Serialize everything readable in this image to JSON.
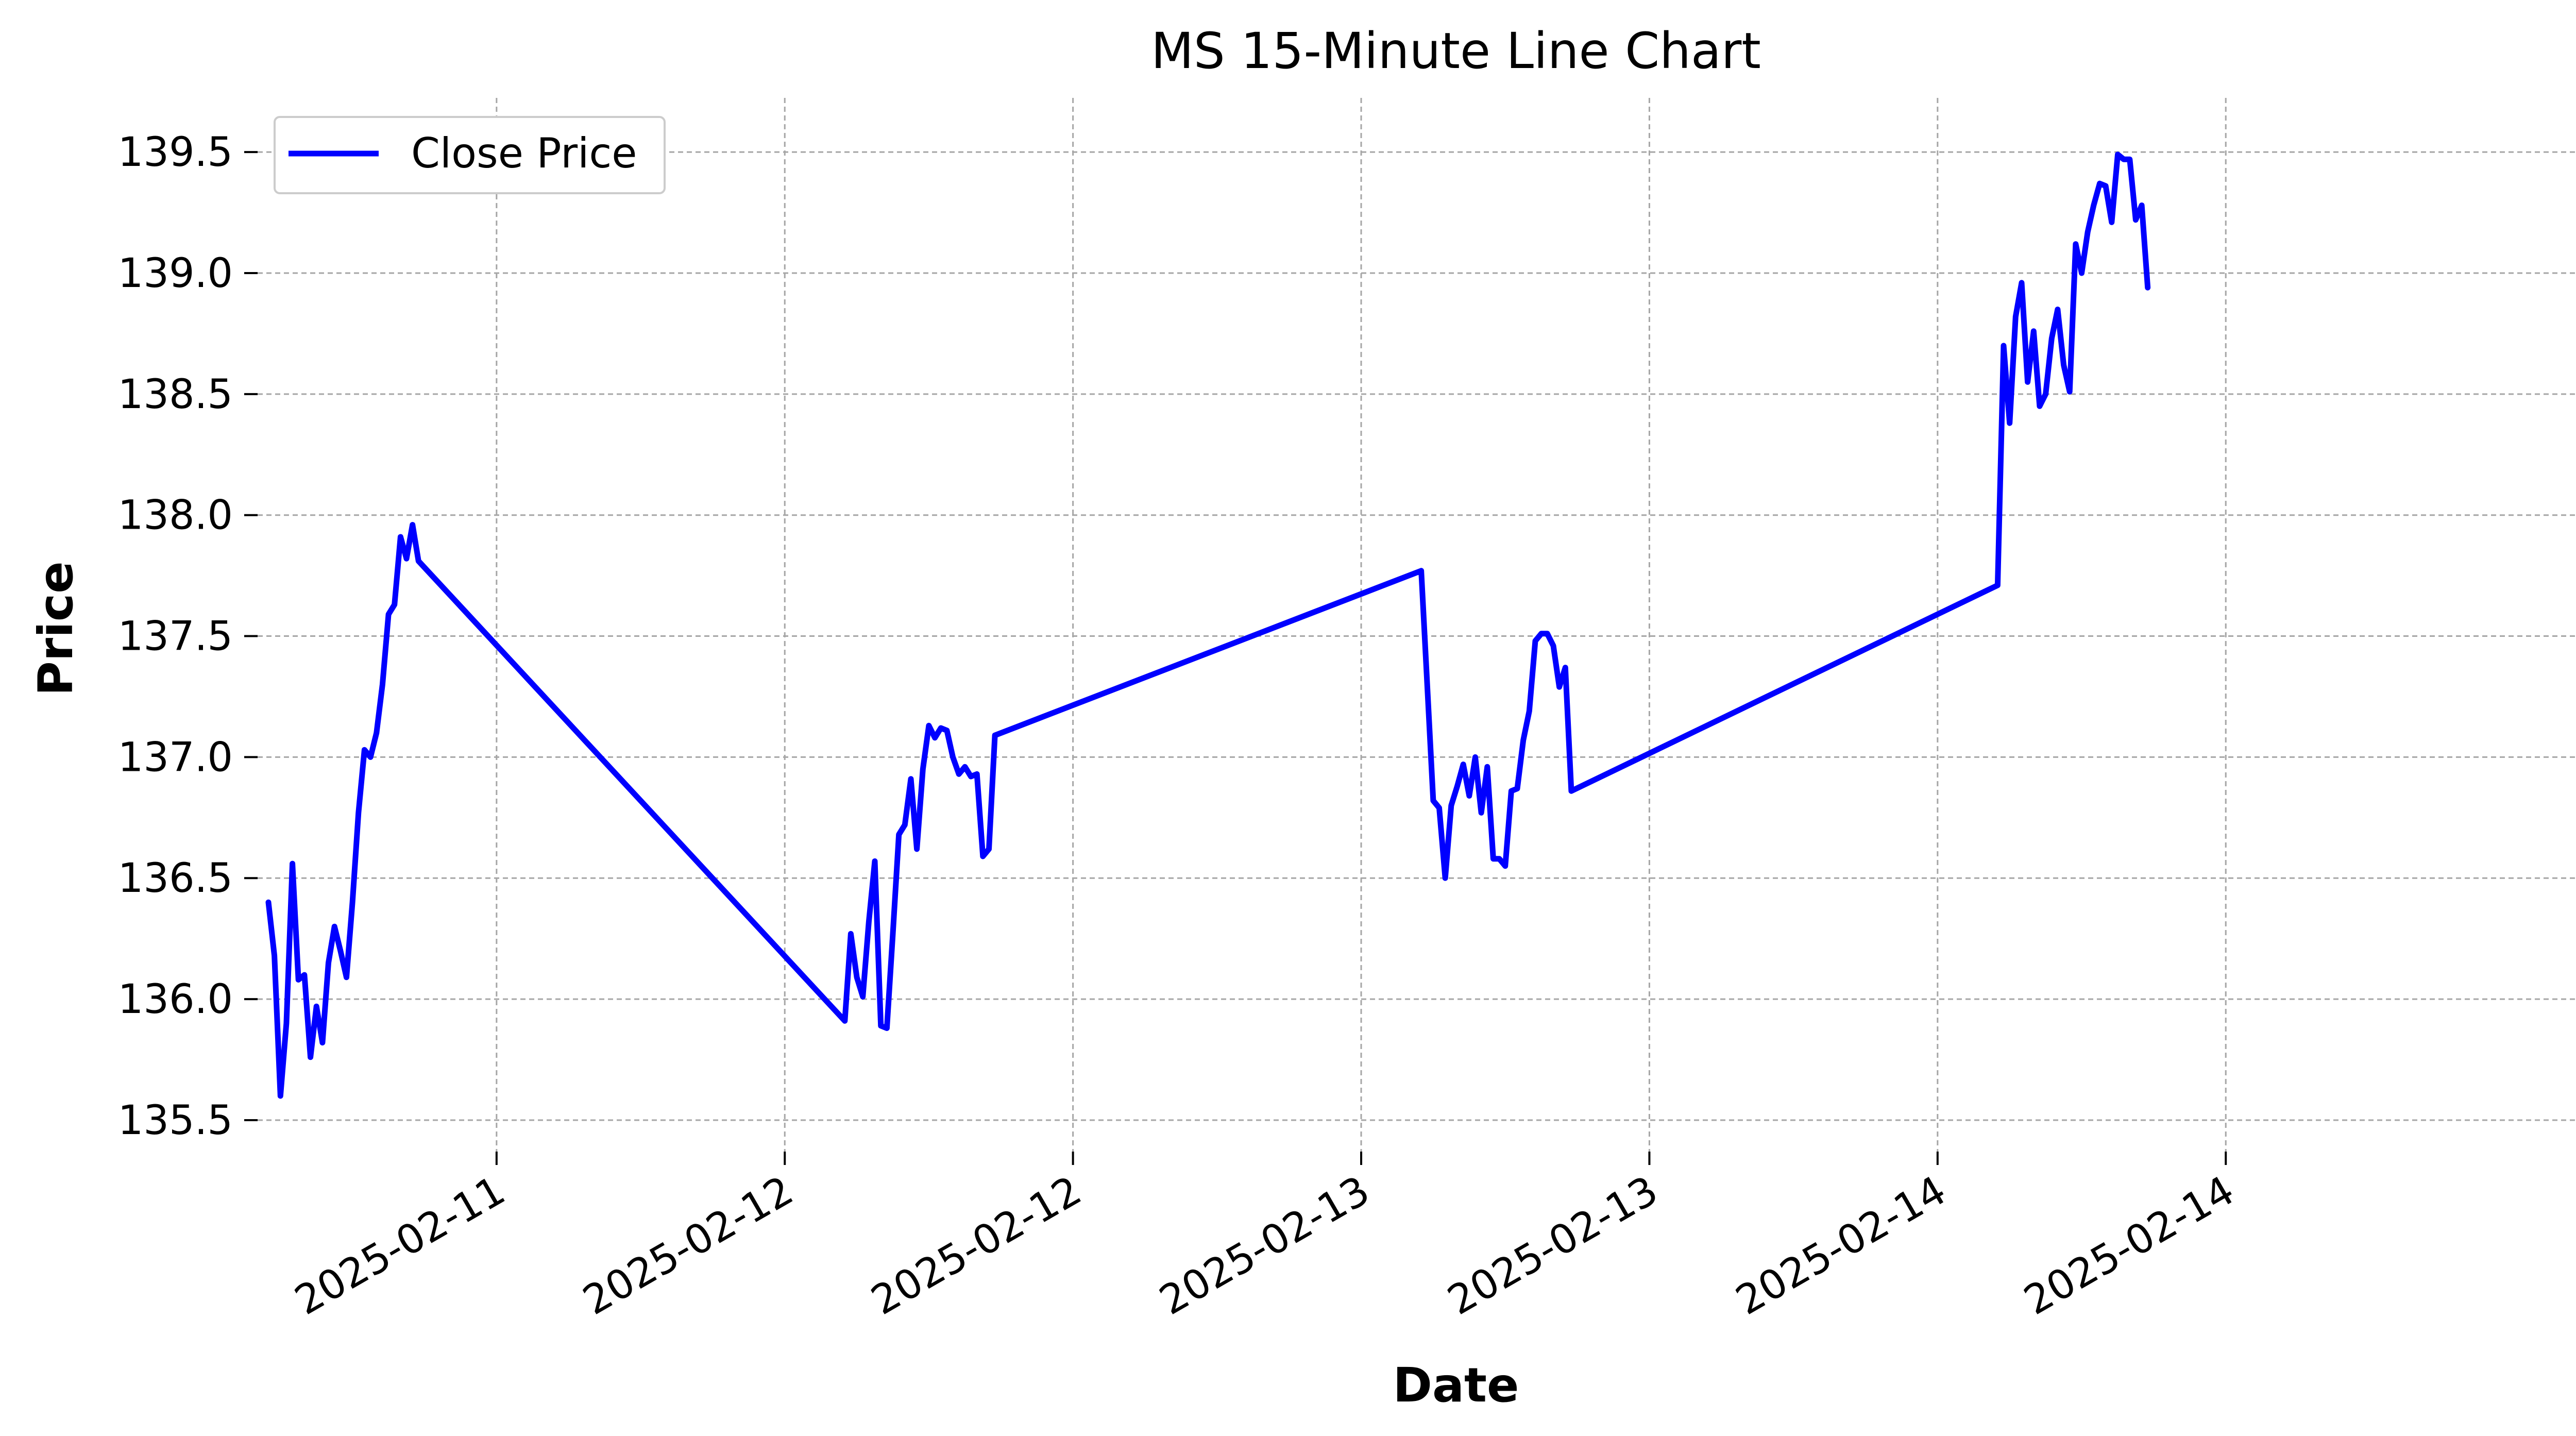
{
  "chart_data": {
    "type": "line",
    "title": "MS 15-Minute Line Chart",
    "xlabel": "Date",
    "ylabel": "Price",
    "ylim": [
      135.37,
      139.66
    ],
    "xlim": [
      "2025-02-10 14:03",
      "2025-02-14 17:48"
    ],
    "grid": true,
    "legend_position": "top-left",
    "colors": {
      "line": "#0000ff",
      "grid": "#a6a6a6"
    },
    "x_ticks": [
      {
        "x": "2025-02-11 00:00",
        "label": "2025-02-11"
      },
      {
        "x": "2025-02-11 12:00",
        "label": "2025-02-12"
      },
      {
        "x": "2025-02-12 00:00",
        "label": "2025-02-12"
      },
      {
        "x": "2025-02-12 12:00",
        "label": "2025-02-13"
      },
      {
        "x": "2025-02-13 00:00",
        "label": "2025-02-13"
      },
      {
        "x": "2025-02-13 12:00",
        "label": "2025-02-14"
      },
      {
        "x": "2025-02-14 00:00",
        "label": "2025-02-14"
      }
    ],
    "y_ticks": [
      135.5,
      136.0,
      136.5,
      137.0,
      137.5,
      138.0,
      138.5,
      139.0,
      139.5
    ],
    "series": [
      {
        "name": "Close Price",
        "points": [
          [
            "2025-02-10 14:30",
            136.4
          ],
          [
            "2025-02-10 14:45",
            136.18
          ],
          [
            "2025-02-10 15:00",
            135.6
          ],
          [
            "2025-02-10 15:15",
            135.9
          ],
          [
            "2025-02-10 15:30",
            136.56
          ],
          [
            "2025-02-10 15:45",
            136.08
          ],
          [
            "2025-02-10 16:00",
            136.1
          ],
          [
            "2025-02-10 16:15",
            135.76
          ],
          [
            "2025-02-10 16:30",
            135.97
          ],
          [
            "2025-02-10 16:45",
            135.82
          ],
          [
            "2025-02-10 17:00",
            136.15
          ],
          [
            "2025-02-10 17:15",
            136.3
          ],
          [
            "2025-02-10 17:30",
            136.2
          ],
          [
            "2025-02-10 17:45",
            136.09
          ],
          [
            "2025-02-10 18:00",
            136.4
          ],
          [
            "2025-02-10 18:15",
            136.77
          ],
          [
            "2025-02-10 18:30",
            137.03
          ],
          [
            "2025-02-10 18:45",
            137.0
          ],
          [
            "2025-02-10 19:00",
            137.1
          ],
          [
            "2025-02-10 19:15",
            137.3
          ],
          [
            "2025-02-10 19:30",
            137.59
          ],
          [
            "2025-02-10 19:45",
            137.63
          ],
          [
            "2025-02-10 20:00",
            137.91
          ],
          [
            "2025-02-10 20:15",
            137.82
          ],
          [
            "2025-02-10 20:30",
            137.96
          ],
          [
            "2025-02-10 20:45",
            137.81
          ],
          [
            "2025-02-11 14:30",
            135.91
          ],
          [
            "2025-02-11 14:45",
            136.27
          ],
          [
            "2025-02-11 15:00",
            136.09
          ],
          [
            "2025-02-11 15:15",
            136.01
          ],
          [
            "2025-02-11 15:30",
            136.32
          ],
          [
            "2025-02-11 15:45",
            136.57
          ],
          [
            "2025-02-11 16:00",
            135.89
          ],
          [
            "2025-02-11 16:15",
            135.88
          ],
          [
            "2025-02-11 16:30",
            136.27
          ],
          [
            "2025-02-11 16:45",
            136.68
          ],
          [
            "2025-02-11 17:00",
            136.72
          ],
          [
            "2025-02-11 17:15",
            136.91
          ],
          [
            "2025-02-11 17:30",
            136.62
          ],
          [
            "2025-02-11 17:45",
            136.95
          ],
          [
            "2025-02-11 18:00",
            137.13
          ],
          [
            "2025-02-11 18:15",
            137.08
          ],
          [
            "2025-02-11 18:30",
            137.12
          ],
          [
            "2025-02-11 18:45",
            137.11
          ],
          [
            "2025-02-11 19:00",
            137.0
          ],
          [
            "2025-02-11 19:15",
            136.93
          ],
          [
            "2025-02-11 19:30",
            136.96
          ],
          [
            "2025-02-11 19:45",
            136.92
          ],
          [
            "2025-02-11 20:00",
            136.93
          ],
          [
            "2025-02-11 20:15",
            136.59
          ],
          [
            "2025-02-11 20:30",
            136.62
          ],
          [
            "2025-02-11 20:45",
            137.09
          ],
          [
            "2025-02-12 14:30",
            137.77
          ],
          [
            "2025-02-12 14:45",
            137.3
          ],
          [
            "2025-02-12 15:00",
            136.82
          ],
          [
            "2025-02-12 15:15",
            136.79
          ],
          [
            "2025-02-12 15:30",
            136.5
          ],
          [
            "2025-02-12 15:45",
            136.8
          ],
          [
            "2025-02-12 16:00",
            136.88
          ],
          [
            "2025-02-12 16:15",
            136.97
          ],
          [
            "2025-02-12 16:30",
            136.84
          ],
          [
            "2025-02-12 16:45",
            137.0
          ],
          [
            "2025-02-12 17:00",
            136.77
          ],
          [
            "2025-02-12 17:15",
            136.96
          ],
          [
            "2025-02-12 17:30",
            136.58
          ],
          [
            "2025-02-12 17:45",
            136.58
          ],
          [
            "2025-02-12 18:00",
            136.55
          ],
          [
            "2025-02-12 18:15",
            136.86
          ],
          [
            "2025-02-12 18:30",
            136.87
          ],
          [
            "2025-02-12 18:45",
            137.07
          ],
          [
            "2025-02-12 19:00",
            137.19
          ],
          [
            "2025-02-12 19:15",
            137.48
          ],
          [
            "2025-02-12 19:30",
            137.51
          ],
          [
            "2025-02-12 19:45",
            137.51
          ],
          [
            "2025-02-12 20:00",
            137.46
          ],
          [
            "2025-02-12 20:15",
            137.29
          ],
          [
            "2025-02-12 20:30",
            137.37
          ],
          [
            "2025-02-12 20:45",
            136.86
          ],
          [
            "2025-02-13 14:30",
            137.71
          ],
          [
            "2025-02-13 14:45",
            138.7
          ],
          [
            "2025-02-13 15:00",
            138.38
          ],
          [
            "2025-02-13 15:15",
            138.82
          ],
          [
            "2025-02-13 15:30",
            138.96
          ],
          [
            "2025-02-13 15:45",
            138.55
          ],
          [
            "2025-02-13 16:00",
            138.76
          ],
          [
            "2025-02-13 16:15",
            138.45
          ],
          [
            "2025-02-13 16:30",
            138.5
          ],
          [
            "2025-02-13 16:45",
            138.73
          ],
          [
            "2025-02-13 17:00",
            138.85
          ],
          [
            "2025-02-13 17:15",
            138.62
          ],
          [
            "2025-02-13 17:30",
            138.51
          ],
          [
            "2025-02-13 17:45",
            139.12
          ],
          [
            "2025-02-13 18:00",
            139.0
          ],
          [
            "2025-02-13 18:15",
            139.17
          ],
          [
            "2025-02-13 18:30",
            139.28
          ],
          [
            "2025-02-13 18:45",
            139.37
          ],
          [
            "2025-02-13 19:00",
            139.36
          ],
          [
            "2025-02-13 19:15",
            139.21
          ],
          [
            "2025-02-13 19:30",
            139.49
          ],
          [
            "2025-02-13 19:45",
            139.47
          ],
          [
            "2025-02-13 20:00",
            139.47
          ],
          [
            "2025-02-13 20:15",
            139.22
          ],
          [
            "2025-02-13 20:30",
            139.28
          ],
          [
            "2025-02-13 20:45",
            138.94
          ]
        ]
      }
    ]
  }
}
